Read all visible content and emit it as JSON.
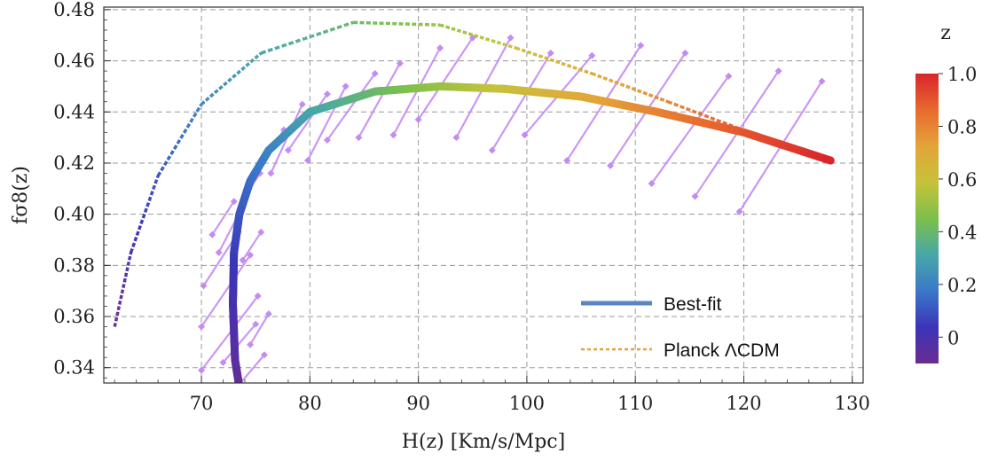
{
  "chart_data": {
    "type": "line",
    "xlabel": "H(z) [Km/s/Mpc]",
    "ylabel": "fσ8(z)",
    "xlim": [
      61,
      131
    ],
    "ylim": [
      0.334,
      0.481
    ],
    "xticks": [
      70,
      80,
      90,
      100,
      110,
      120,
      130
    ],
    "yticks": [
      0.34,
      0.36,
      0.38,
      0.4,
      0.42,
      0.44,
      0.46,
      0.48
    ],
    "ytick_labels": [
      "0.34",
      "0.36",
      "0.38",
      "0.40",
      "0.42",
      "0.44",
      "0.46",
      "0.48"
    ],
    "grid": true,
    "legend_position": "bottom-right",
    "colorbar": {
      "label": "z",
      "range": [
        -0.1,
        1.0
      ],
      "ticks": [
        1.0,
        0.8,
        0.6,
        0.4,
        0.2,
        0
      ],
      "tick_labels": [
        "1.0",
        "0.8",
        "0.6",
        "0.4",
        "0.2",
        "0"
      ],
      "colormap": [
        "#6a2c91",
        "#3b34b8",
        "#3a78c8",
        "#47a8a8",
        "#7cc04a",
        "#c6c23a",
        "#e4a43a",
        "#e8692e",
        "#d8262c"
      ]
    },
    "series": [
      {
        "name": "Best-fit",
        "style": "thick solid, colored by z",
        "z": [
          -0.1,
          -0.05,
          0,
          0.05,
          0.1,
          0.15,
          0.2,
          0.3,
          0.4,
          0.5,
          0.6,
          0.7,
          0.8,
          0.9,
          1.0
        ],
        "x": [
          73.7,
          73.1,
          72.9,
          73.0,
          73.5,
          74.5,
          76.2,
          80.0,
          86.0,
          92.0,
          98.0,
          105.0,
          112.0,
          120.0,
          128.0
        ],
        "y": [
          0.327,
          0.343,
          0.365,
          0.385,
          0.4,
          0.413,
          0.425,
          0.44,
          0.448,
          0.45,
          0.449,
          0.446,
          0.44,
          0.432,
          0.421
        ]
      },
      {
        "name": "Planck ΛCDM",
        "style": "dotted, colored by z",
        "z": [
          -0.1,
          0,
          0.1,
          0.2,
          0.3,
          0.4,
          0.5,
          0.6,
          0.7,
          0.8,
          0.9,
          1.0
        ],
        "x": [
          62.0,
          63.5,
          66.0,
          70.0,
          75.5,
          84.0,
          92.0,
          99.0,
          106.0,
          113.0,
          120.5,
          128.0
        ],
        "y": [
          0.356,
          0.385,
          0.415,
          0.443,
          0.463,
          0.475,
          0.474,
          0.465,
          0.455,
          0.444,
          0.432,
          0.421
        ]
      }
    ],
    "error_segments": {
      "color": "#c48cf2",
      "items": [
        {
          "x1": 71.0,
          "y1": 0.392,
          "x2": 73.0,
          "y2": 0.405
        },
        {
          "x1": 71.6,
          "y1": 0.385,
          "x2": 73.8,
          "y2": 0.403
        },
        {
          "x1": 70.2,
          "y1": 0.372,
          "x2": 73.4,
          "y2": 0.393
        },
        {
          "x1": 70.0,
          "y1": 0.356,
          "x2": 74.5,
          "y2": 0.384
        },
        {
          "x1": 70.0,
          "y1": 0.339,
          "x2": 75.2,
          "y2": 0.368
        },
        {
          "x1": 73.0,
          "y1": 0.331,
          "x2": 75.8,
          "y2": 0.345
        },
        {
          "x1": 74.5,
          "y1": 0.349,
          "x2": 76.2,
          "y2": 0.361
        },
        {
          "x1": 72.0,
          "y1": 0.342,
          "x2": 75.0,
          "y2": 0.357
        },
        {
          "x1": 73.8,
          "y1": 0.382,
          "x2": 75.5,
          "y2": 0.393
        },
        {
          "x1": 74.2,
          "y1": 0.408,
          "x2": 75.4,
          "y2": 0.416
        },
        {
          "x1": 74.8,
          "y1": 0.414,
          "x2": 77.6,
          "y2": 0.433
        },
        {
          "x1": 76.4,
          "y1": 0.416,
          "x2": 79.3,
          "y2": 0.443
        },
        {
          "x1": 78.0,
          "y1": 0.425,
          "x2": 81.6,
          "y2": 0.447
        },
        {
          "x1": 79.8,
          "y1": 0.421,
          "x2": 83.3,
          "y2": 0.45
        },
        {
          "x1": 81.6,
          "y1": 0.429,
          "x2": 86.0,
          "y2": 0.455
        },
        {
          "x1": 84.5,
          "y1": 0.43,
          "x2": 88.3,
          "y2": 0.459
        },
        {
          "x1": 87.7,
          "y1": 0.431,
          "x2": 92.0,
          "y2": 0.465
        },
        {
          "x1": 90.0,
          "y1": 0.437,
          "x2": 95.0,
          "y2": 0.469
        },
        {
          "x1": 93.5,
          "y1": 0.43,
          "x2": 98.5,
          "y2": 0.469
        },
        {
          "x1": 96.8,
          "y1": 0.425,
          "x2": 102.2,
          "y2": 0.463
        },
        {
          "x1": 99.8,
          "y1": 0.431,
          "x2": 106.0,
          "y2": 0.462
        },
        {
          "x1": 103.7,
          "y1": 0.421,
          "x2": 110.5,
          "y2": 0.466
        },
        {
          "x1": 107.7,
          "y1": 0.419,
          "x2": 114.6,
          "y2": 0.463
        },
        {
          "x1": 111.5,
          "y1": 0.412,
          "x2": 118.6,
          "y2": 0.454
        },
        {
          "x1": 115.5,
          "y1": 0.407,
          "x2": 123.2,
          "y2": 0.456
        },
        {
          "x1": 119.6,
          "y1": 0.401,
          "x2": 127.2,
          "y2": 0.452
        }
      ]
    }
  }
}
